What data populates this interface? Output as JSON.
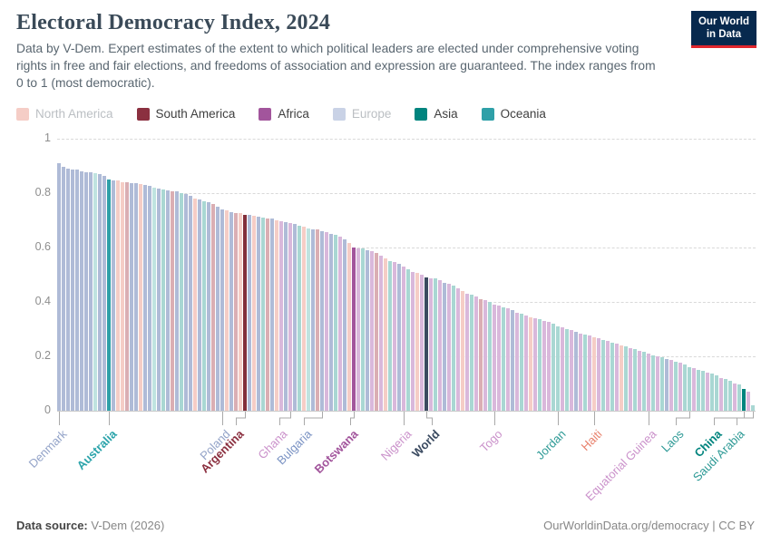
{
  "header": {
    "title": "Electoral Democracy Index, 2024",
    "subtitle": "Data by V-Dem. Expert estimates of the extent to which political leaders are elected under comprehensive voting rights in free and fair elections, and freedoms of association and expression are guaranteed. The index ranges from 0 to 1 (most democratic).",
    "logo": {
      "line1": "Our World",
      "line2": "in Data"
    }
  },
  "legend": {
    "items": [
      {
        "label": "North America",
        "swatch": "#F5CDC6",
        "label_color": "#BBBFC3"
      },
      {
        "label": "South America",
        "swatch": "#8B3040",
        "label_color": "#3F3F3F"
      },
      {
        "label": "Africa",
        "swatch": "#A2559C",
        "label_color": "#3F3F3F"
      },
      {
        "label": "Europe",
        "swatch": "#C9D2E6",
        "label_color": "#BBBFC3"
      },
      {
        "label": "Asia",
        "swatch": "#00847E",
        "label_color": "#3F3F3F"
      },
      {
        "label": "Oceania",
        "swatch": "#2FA0A8",
        "label_color": "#3F3F3F"
      }
    ]
  },
  "chart_data": {
    "type": "bar",
    "title": "Electoral Democracy Index, 2024",
    "xlabel": "",
    "ylabel": "",
    "ylim": [
      0,
      1
    ],
    "yticks": [
      0,
      0.2,
      0.4,
      0.6,
      0.8,
      1
    ],
    "grid": "horizontal-dashed",
    "legend_position": "top",
    "colors": {
      "faded": {
        "EU": "#AFBBD7",
        "NA": "#F5CDC6",
        "SA": "#DAAEB3",
        "AF": "#D9B8DB",
        "AS": "#A9D7D3",
        "OC": "#BFE3E0"
      },
      "full": {
        "EU": "#4C6A9C",
        "NA": "#E56E5A",
        "SA": "#832F3A",
        "AF": "#A2559C",
        "AS": "#00847E",
        "OC": "#2FA0A8",
        "W": "#3B4A5F"
      }
    },
    "bars": [
      [
        0.91,
        "EU"
      ],
      [
        0.895,
        "EU"
      ],
      [
        0.89,
        "EU"
      ],
      [
        0.888,
        "EU"
      ],
      [
        0.885,
        "EU"
      ],
      [
        0.88,
        "EU"
      ],
      [
        0.878,
        "EU"
      ],
      [
        0.875,
        "EU"
      ],
      [
        0.872,
        "OC"
      ],
      [
        0.87,
        "EU"
      ],
      [
        0.862,
        "EU"
      ],
      [
        0.85,
        "OC"
      ],
      [
        0.848,
        "EU"
      ],
      [
        0.845,
        "NA"
      ],
      [
        0.84,
        "NA"
      ],
      [
        0.84,
        "SA"
      ],
      [
        0.838,
        "EU"
      ],
      [
        0.835,
        "EU"
      ],
      [
        0.832,
        "NA"
      ],
      [
        0.83,
        "EU"
      ],
      [
        0.825,
        "EU"
      ],
      [
        0.82,
        "OC"
      ],
      [
        0.818,
        "EU"
      ],
      [
        0.815,
        "AS"
      ],
      [
        0.81,
        "EU"
      ],
      [
        0.808,
        "SA"
      ],
      [
        0.805,
        "EU"
      ],
      [
        0.8,
        "AS"
      ],
      [
        0.795,
        "EU"
      ],
      [
        0.79,
        "EU"
      ],
      [
        0.78,
        "NA"
      ],
      [
        0.775,
        "EU"
      ],
      [
        0.77,
        "AS"
      ],
      [
        0.765,
        "EU"
      ],
      [
        0.76,
        "SA"
      ],
      [
        0.75,
        "EU"
      ],
      [
        0.74,
        "EU"
      ],
      [
        0.735,
        "NA"
      ],
      [
        0.73,
        "EU"
      ],
      [
        0.728,
        "SA"
      ],
      [
        0.725,
        "NA"
      ],
      [
        0.72,
        "SA"
      ],
      [
        0.72,
        "EU"
      ],
      [
        0.715,
        "NA"
      ],
      [
        0.712,
        "EU"
      ],
      [
        0.71,
        "AS"
      ],
      [
        0.708,
        "SA"
      ],
      [
        0.705,
        "EU"
      ],
      [
        0.7,
        "NA"
      ],
      [
        0.698,
        "AF"
      ],
      [
        0.695,
        "EU"
      ],
      [
        0.69,
        "AF"
      ],
      [
        0.685,
        "EU"
      ],
      [
        0.68,
        "AS"
      ],
      [
        0.675,
        "NA"
      ],
      [
        0.67,
        "OC"
      ],
      [
        0.668,
        "EU"
      ],
      [
        0.665,
        "SA"
      ],
      [
        0.66,
        "EU"
      ],
      [
        0.655,
        "AF"
      ],
      [
        0.65,
        "EU"
      ],
      [
        0.645,
        "AS"
      ],
      [
        0.64,
        "AF"
      ],
      [
        0.63,
        "EU"
      ],
      [
        0.615,
        "NA"
      ],
      [
        0.6,
        "AF"
      ],
      [
        0.598,
        "AF"
      ],
      [
        0.595,
        "AS"
      ],
      [
        0.59,
        "EU"
      ],
      [
        0.585,
        "AF"
      ],
      [
        0.58,
        "SA"
      ],
      [
        0.57,
        "AF"
      ],
      [
        0.56,
        "NA"
      ],
      [
        0.55,
        "AS"
      ],
      [
        0.545,
        "AF"
      ],
      [
        0.54,
        "EU"
      ],
      [
        0.53,
        "AF"
      ],
      [
        0.52,
        "AS"
      ],
      [
        0.51,
        "AF"
      ],
      [
        0.505,
        "NA"
      ],
      [
        0.5,
        "AF"
      ],
      [
        0.49,
        "W"
      ],
      [
        0.488,
        "AF"
      ],
      [
        0.485,
        "AS"
      ],
      [
        0.48,
        "AF"
      ],
      [
        0.47,
        "EU"
      ],
      [
        0.465,
        "AF"
      ],
      [
        0.46,
        "AS"
      ],
      [
        0.45,
        "AF"
      ],
      [
        0.44,
        "NA"
      ],
      [
        0.43,
        "AF"
      ],
      [
        0.425,
        "AS"
      ],
      [
        0.42,
        "AF"
      ],
      [
        0.41,
        "SA"
      ],
      [
        0.405,
        "AF"
      ],
      [
        0.4,
        "AS"
      ],
      [
        0.39,
        "AF"
      ],
      [
        0.385,
        "AF"
      ],
      [
        0.38,
        "AS"
      ],
      [
        0.375,
        "AF"
      ],
      [
        0.37,
        "EU"
      ],
      [
        0.36,
        "AF"
      ],
      [
        0.355,
        "AS"
      ],
      [
        0.35,
        "AF"
      ],
      [
        0.345,
        "NA"
      ],
      [
        0.34,
        "AF"
      ],
      [
        0.335,
        "AS"
      ],
      [
        0.33,
        "AF"
      ],
      [
        0.325,
        "AF"
      ],
      [
        0.32,
        "AS"
      ],
      [
        0.31,
        "AS"
      ],
      [
        0.305,
        "AF"
      ],
      [
        0.3,
        "AS"
      ],
      [
        0.295,
        "AF"
      ],
      [
        0.29,
        "EU"
      ],
      [
        0.285,
        "AF"
      ],
      [
        0.28,
        "AS"
      ],
      [
        0.275,
        "AF"
      ],
      [
        0.27,
        "NA"
      ],
      [
        0.265,
        "AF"
      ],
      [
        0.26,
        "AS"
      ],
      [
        0.255,
        "AF"
      ],
      [
        0.25,
        "AS"
      ],
      [
        0.245,
        "AF"
      ],
      [
        0.24,
        "NA"
      ],
      [
        0.235,
        "AS"
      ],
      [
        0.23,
        "AF"
      ],
      [
        0.225,
        "AS"
      ],
      [
        0.22,
        "AF"
      ],
      [
        0.215,
        "AS"
      ],
      [
        0.21,
        "AF"
      ],
      [
        0.205,
        "AS"
      ],
      [
        0.2,
        "AF"
      ],
      [
        0.195,
        "AS"
      ],
      [
        0.19,
        "EU"
      ],
      [
        0.185,
        "AF"
      ],
      [
        0.18,
        "AS"
      ],
      [
        0.175,
        "AF"
      ],
      [
        0.17,
        "AS"
      ],
      [
        0.16,
        "AS"
      ],
      [
        0.155,
        "AF"
      ],
      [
        0.15,
        "AS"
      ],
      [
        0.145,
        "AS"
      ],
      [
        0.14,
        "AF"
      ],
      [
        0.135,
        "AS"
      ],
      [
        0.13,
        "AS"
      ],
      [
        0.12,
        "AF"
      ],
      [
        0.115,
        "AS"
      ],
      [
        0.11,
        "AS"
      ],
      [
        0.1,
        "AF"
      ],
      [
        0.095,
        "AS"
      ],
      [
        0.08,
        "AS"
      ],
      [
        0.07,
        "AF"
      ],
      [
        0.02,
        "AS"
      ]
    ],
    "labels": [
      {
        "name": "Denmark",
        "i": 1,
        "dx": 0,
        "color": "#93A3C8",
        "bold": false
      },
      {
        "name": "Australia",
        "i": 12,
        "dx": 0,
        "color": "#2AA3AA",
        "bold": true
      },
      {
        "name": "Poland",
        "i": 37,
        "dx": 0,
        "color": "#93A3C8",
        "bold": false
      },
      {
        "name": "Argentina",
        "i": 42,
        "dx": -10,
        "color": "#8B2F3F",
        "bold": true
      },
      {
        "name": "Ghana",
        "i": 52,
        "dx": -12,
        "color": "#CB92CB",
        "bold": false
      },
      {
        "name": "Bulgaria",
        "i": 59,
        "dx": -20,
        "color": "#7A92C3",
        "bold": false
      },
      {
        "name": "Botswana",
        "i": 66,
        "dx": -4,
        "color": "#A2559C",
        "bold": true
      },
      {
        "name": "Nigeria",
        "i": 77,
        "dx": 0,
        "color": "#CB92CB",
        "bold": false
      },
      {
        "name": "World",
        "i": 82,
        "dx": 6,
        "color": "#3A4A60",
        "bold": true
      },
      {
        "name": "Togo",
        "i": 97,
        "dx": 0,
        "color": "#CB92CB",
        "bold": false
      },
      {
        "name": "Jordan",
        "i": 111,
        "dx": 0,
        "color": "#2E9A96",
        "bold": false
      },
      {
        "name": "Haiti",
        "i": 119,
        "dx": 0,
        "color": "#E8806B",
        "bold": false
      },
      {
        "name": "Equatorial Guinea",
        "i": 131,
        "dx": 0,
        "color": "#CB92CB",
        "bold": false
      },
      {
        "name": "Laos",
        "i": 140,
        "dx": -15,
        "color": "#2E9A96",
        "bold": false
      },
      {
        "name": "China",
        "i": 152,
        "dx": -33,
        "color": "#00847E",
        "bold": true
      },
      {
        "name": "Saudi Arabia",
        "i": 154,
        "dx": -18,
        "color": "#2E9A96",
        "bold": false
      }
    ]
  },
  "footer": {
    "source_label": "Data source:",
    "source_value": "V-Dem (2026)",
    "link": "OurWorldinData.org/democracy | CC BY"
  }
}
